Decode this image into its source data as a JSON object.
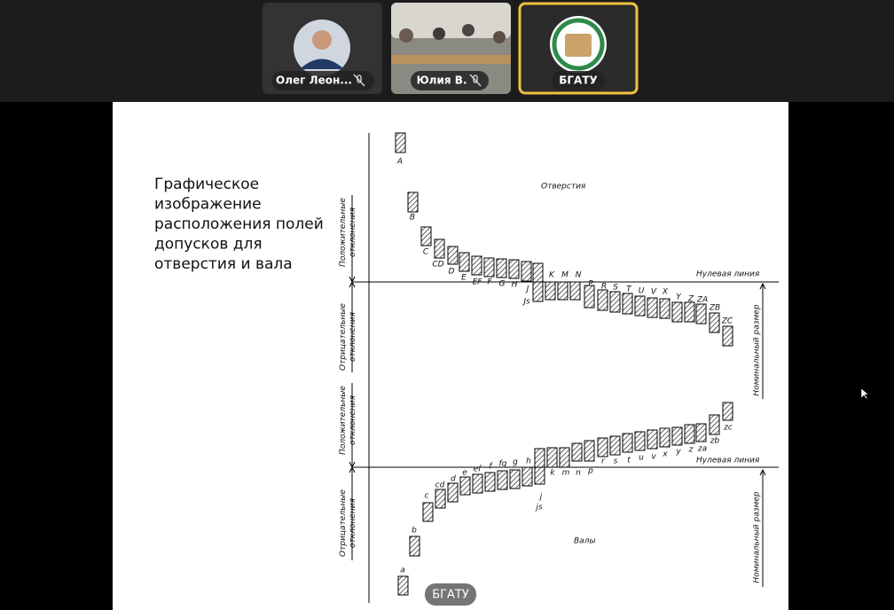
{
  "participants": [
    {
      "name": "Олег Леон..."
    },
    {
      "name": "Юлия В."
    },
    {
      "name": "БГАТУ"
    }
  ],
  "slide": {
    "title_lines": [
      "Графическое",
      "изображение",
      "расположения полей",
      "допусков для",
      "отверстия и вала"
    ],
    "holes": {
      "caption": "Отверстия",
      "zero_line": "Нулевая линия",
      "positive_label": [
        "Положительные",
        "отклонения"
      ],
      "negative_label": [
        "Отрицательные",
        "отклонения"
      ],
      "nominal_label": "Номинальный размер",
      "letters": [
        "A",
        "B",
        "C",
        "CD",
        "D",
        "E",
        "EF",
        "F",
        "G",
        "H",
        "J",
        "Js",
        "K",
        "M",
        "N",
        "P",
        "R",
        "S",
        "T",
        "U",
        "V",
        "X",
        "Y",
        "Z",
        "ZA",
        "ZB",
        "ZC"
      ]
    },
    "shafts": {
      "caption": "Валы",
      "zero_line": "Нулевая линия",
      "positive_label": [
        "Положительные",
        "отклонения"
      ],
      "negative_label": [
        "Отрицательные",
        "отклонения"
      ],
      "nominal_label": "Номинальный размер",
      "letters": [
        "a",
        "b",
        "c",
        "cd",
        "d",
        "e",
        "ef",
        "f",
        "fg",
        "g",
        "h",
        "j",
        "js",
        "k",
        "m",
        "n",
        "p",
        "r",
        "s",
        "t",
        "u",
        "v",
        "x",
        "y",
        "z",
        "za",
        "zb",
        "zc"
      ]
    }
  },
  "share_badge": "БГАТУ"
}
